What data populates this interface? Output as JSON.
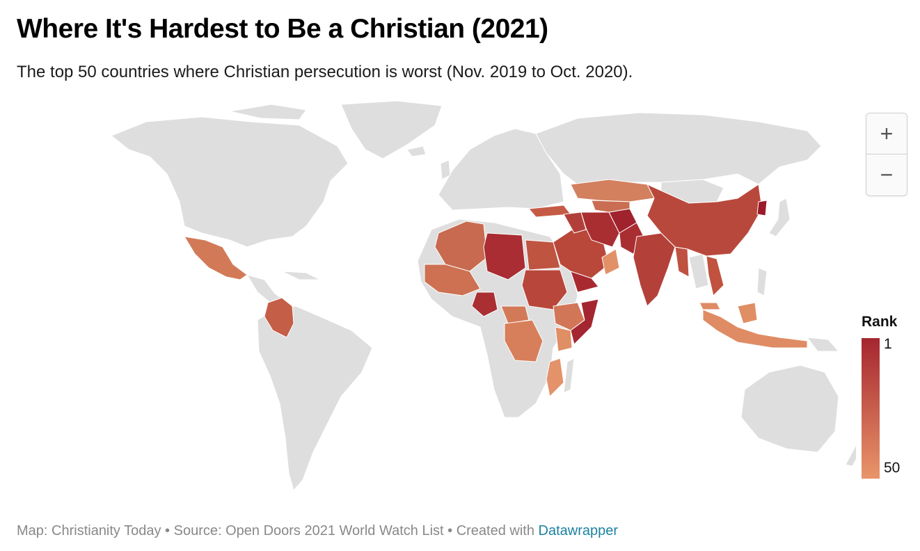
{
  "title": "Where It's Hardest to Be a Christian (2021)",
  "subtitle": "The top 50 countries where Christian persecution is worst (Nov. 2019 to Oct. 2020).",
  "zoom": {
    "in_label": "+",
    "out_label": "−"
  },
  "legend": {
    "title": "Rank",
    "min_label": "1",
    "max_label": "50",
    "color_high": "#a5262f",
    "color_low": "#e9956a"
  },
  "colors": {
    "land": "#dedede",
    "border": "#ffffff"
  },
  "footer": {
    "prefix": "Map: Christianity Today • Source: Open Doors 2021 World Watch List • Created with ",
    "link": "Datawrapper"
  }
}
